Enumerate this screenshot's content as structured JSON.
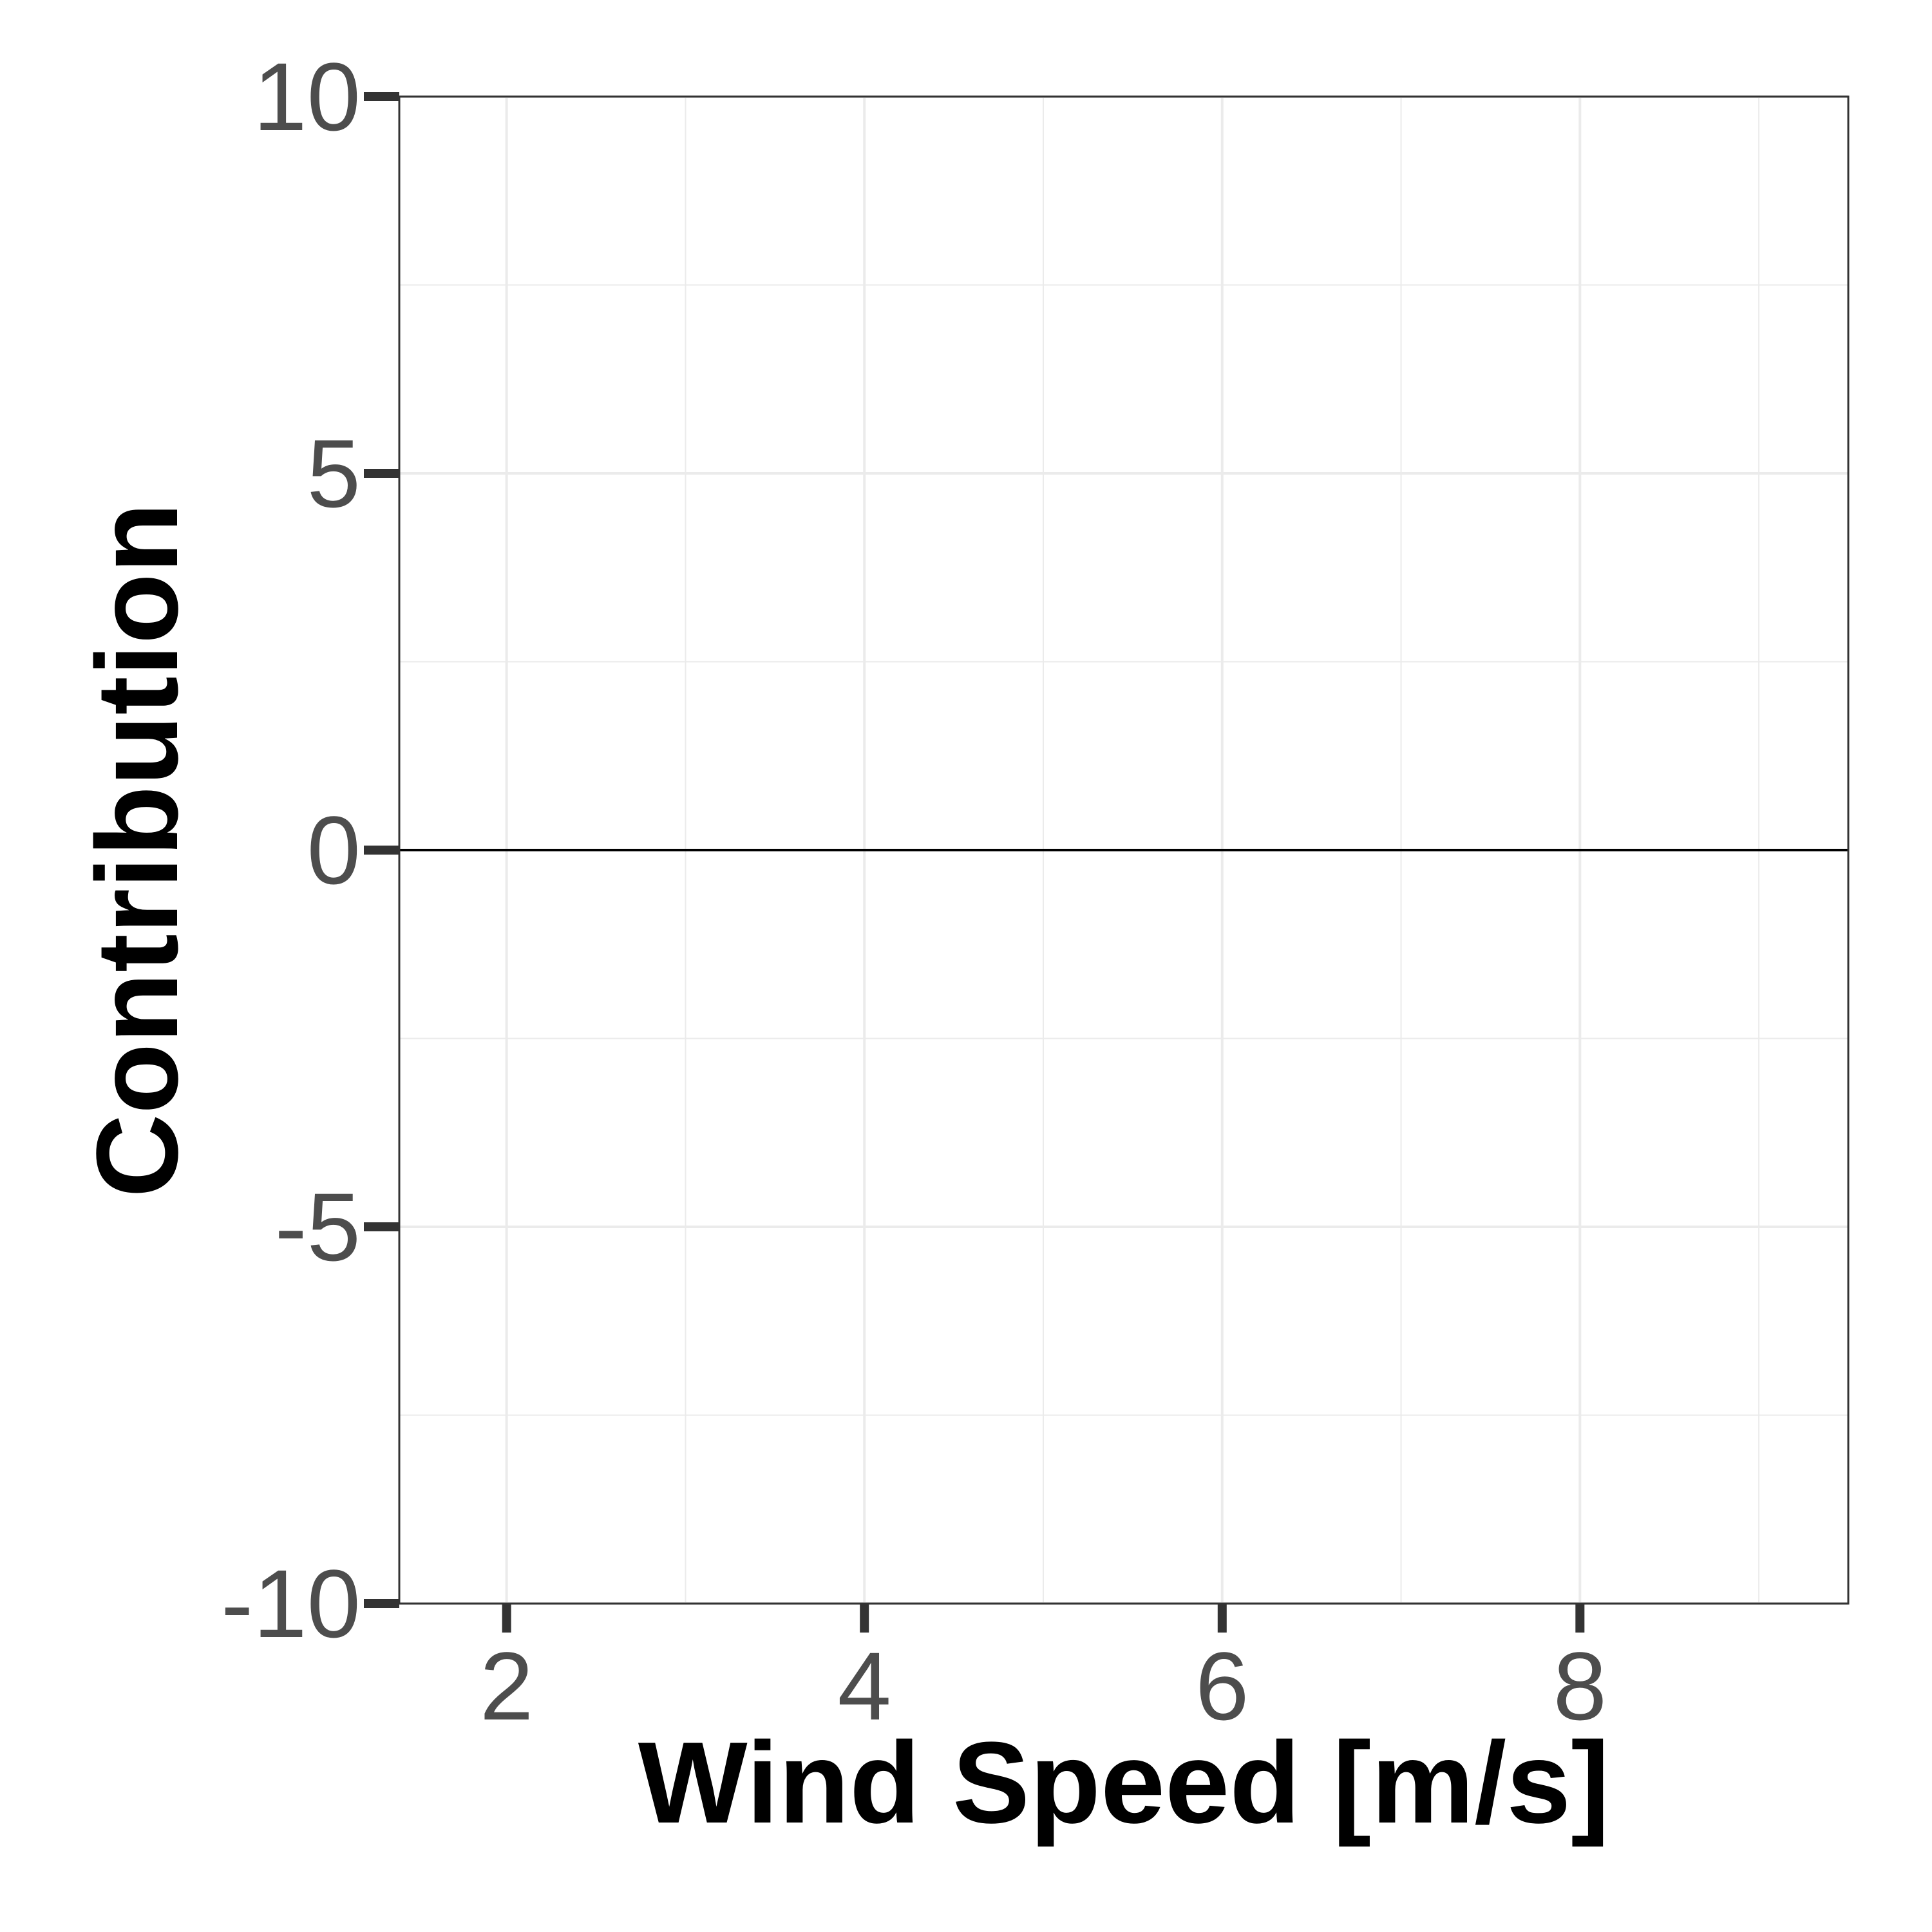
{
  "chart_data": {
    "type": "line",
    "xlabel": "Wind Speed [m/s]",
    "ylabel": "Contribution",
    "xlim": [
      1.4,
      9.5
    ],
    "ylim": [
      -10,
      10
    ],
    "x_ticks": [
      2,
      4,
      6,
      8
    ],
    "x_tick_labels": [
      "2",
      "4",
      "6",
      "8"
    ],
    "x_minor_breaks": [
      3,
      5,
      7,
      9
    ],
    "y_ticks": [
      -10,
      -5,
      0,
      5,
      10
    ],
    "y_tick_labels": [
      "-10",
      "-5",
      "0",
      "5",
      "10"
    ],
    "y_minor_breaks": [
      -7.5,
      -2.5,
      2.5,
      7.5
    ],
    "grid": true,
    "reference_line": {
      "y": 0
    },
    "series": [
      {
        "x": [
          1.4,
          9.5
        ],
        "y": [
          0,
          0
        ]
      }
    ],
    "colors": {
      "grid": "#ebebeb",
      "panel_border": "#333333",
      "tick_marks": "#333333",
      "tick_text": "#4d4d4d",
      "line": "#000000"
    }
  }
}
